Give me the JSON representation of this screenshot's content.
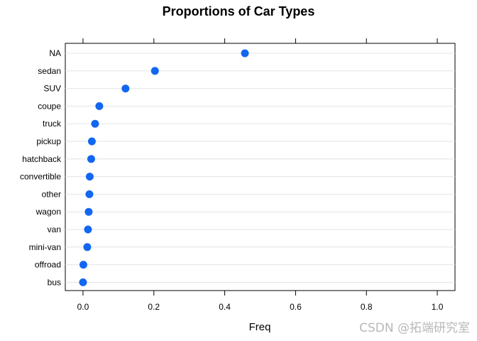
{
  "chart_data": {
    "type": "scatter",
    "style": "dot plot",
    "title": "Proportions of Car Types",
    "xlabel": "Freq",
    "ylabel": "",
    "xlim": [
      -0.05,
      1.05
    ],
    "xticks": [
      0.0,
      0.2,
      0.4,
      0.6,
      0.8,
      1.0
    ],
    "xtick_labels": [
      "0.0",
      "0.2",
      "0.4",
      "0.6",
      "0.8",
      "1.0"
    ],
    "grid": "horizontal",
    "point_color": "#1267f0",
    "grid_color": "#e3e3e3",
    "categories": [
      "NA",
      "sedan",
      "SUV",
      "coupe",
      "truck",
      "pickup",
      "hatchback",
      "convertible",
      "other",
      "wagon",
      "van",
      "mini-van",
      "offroad",
      "bus"
    ],
    "values": [
      0.457,
      0.203,
      0.12,
      0.046,
      0.034,
      0.025,
      0.023,
      0.019,
      0.018,
      0.016,
      0.014,
      0.012,
      0.001,
      0.0
    ]
  },
  "watermark": "CSDN @拓端研究室"
}
